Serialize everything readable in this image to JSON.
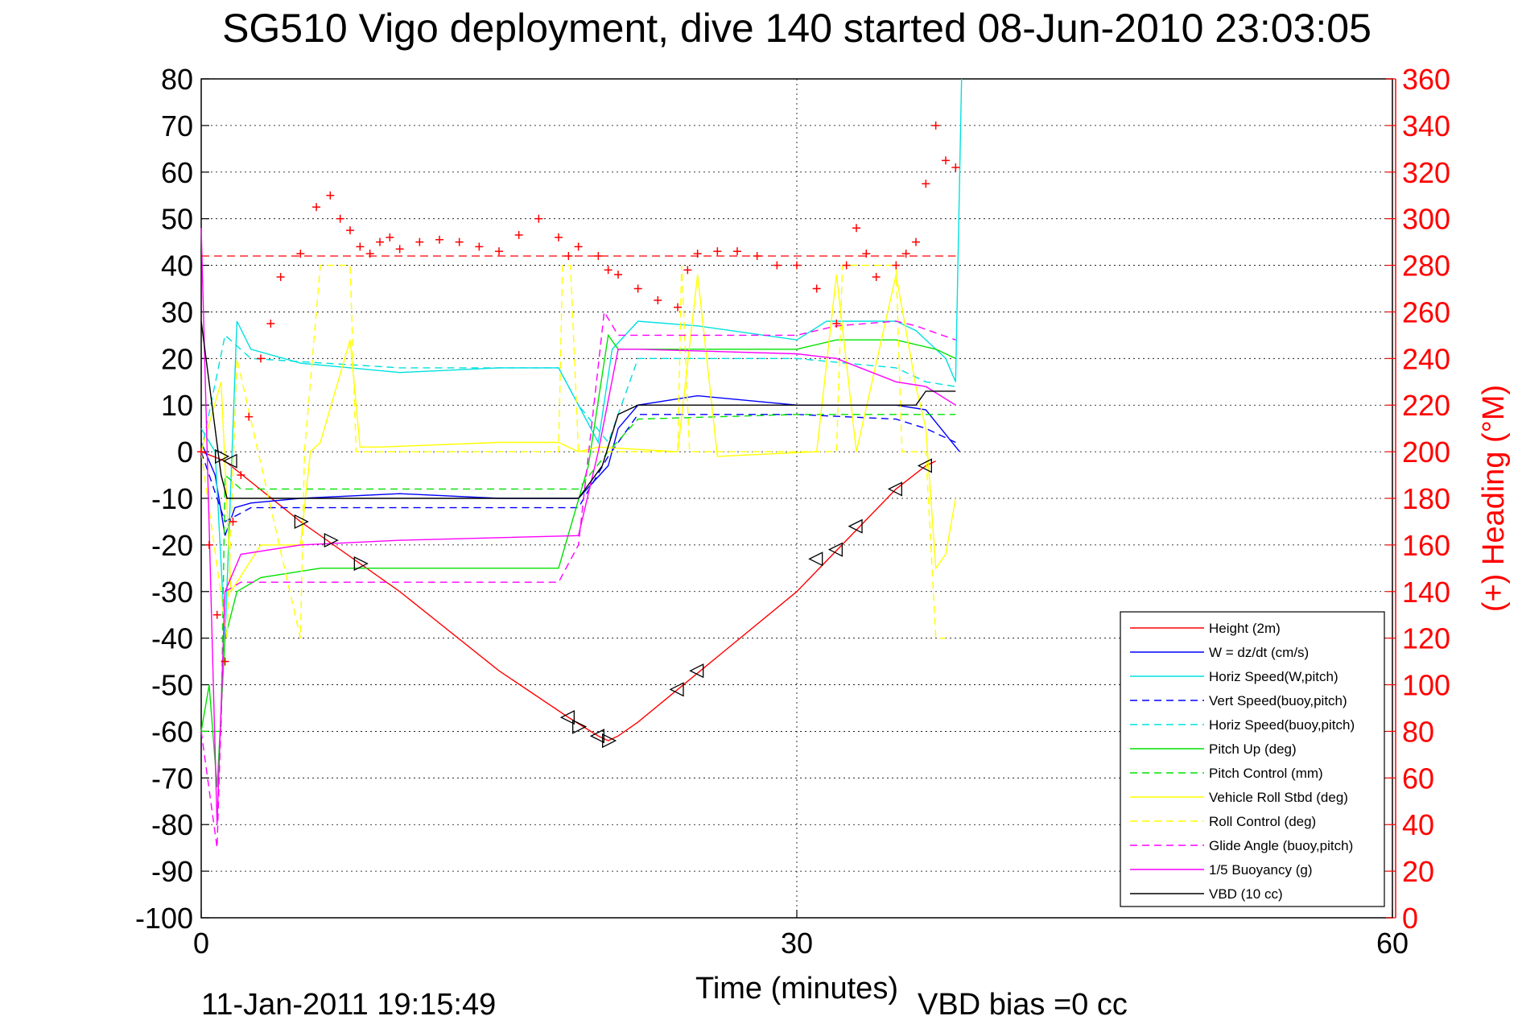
{
  "chart_data": {
    "type": "line",
    "title": "SG510 Vigo deployment, dive 140 started 08-Jun-2010 23:03:05",
    "xlabel": "Time (minutes)",
    "ylabel": "",
    "y2label": "(+) Heading (°M)",
    "xlim": [
      0,
      60
    ],
    "ylim": [
      -100,
      80
    ],
    "y2lim": [
      0,
      360
    ],
    "xticks": [
      "0",
      "30",
      "60"
    ],
    "yticks": [
      "80",
      "70",
      "60",
      "50",
      "40",
      "30",
      "20",
      "10",
      "0",
      "-10",
      "-20",
      "-30",
      "-40",
      "-50",
      "-60",
      "-70",
      "-80",
      "-90",
      "-100"
    ],
    "y2ticks": [
      "360",
      "340",
      "320",
      "300",
      "280",
      "260",
      "240",
      "220",
      "200",
      "180",
      "160",
      "140",
      "120",
      "100",
      "80",
      "60",
      "40",
      "20",
      "0"
    ],
    "grid": true,
    "legend_position": "bottom-right",
    "footer_timestamp": "11-Jan-2011 19:15:49",
    "vbd_bias": "VBD bias =0 cc",
    "series": [
      {
        "name": "Height (2m)",
        "color": "#ff0000",
        "style": "solid",
        "x": [
          0,
          1.2,
          5,
          10,
          15,
          18.5,
          20,
          20.5,
          21,
          22,
          30,
          35,
          36.5,
          37
        ],
        "y": [
          0,
          -2,
          -15,
          -30,
          -47,
          -57,
          -61,
          -62,
          -61,
          -58,
          -30,
          -8,
          -3,
          -2
        ]
      },
      {
        "name": "W = dz/dt (cm/s)",
        "color": "#0000ff",
        "style": "solid",
        "x": [
          0,
          0.7,
          1.2,
          1.7,
          2.5,
          5,
          10,
          15,
          19,
          20.5,
          21,
          22,
          25,
          30,
          35,
          36.5,
          38.2
        ],
        "y": [
          2,
          -5,
          -18,
          -12,
          -11,
          -10,
          -9,
          -10,
          -10,
          -3,
          5,
          10,
          12,
          10,
          10,
          9,
          0
        ]
      },
      {
        "name": "Horiz Speed(W,pitch)",
        "color": "#00e0e0",
        "style": "solid",
        "x": [
          0,
          0.7,
          1.2,
          1.8,
          2.5,
          5,
          10,
          15,
          18,
          19,
          20,
          20.7,
          22,
          25,
          30,
          31.5,
          35,
          36,
          37.5,
          38,
          38.3
        ],
        "y": [
          5,
          0,
          -40,
          28,
          22,
          19,
          17,
          18,
          18,
          10,
          2,
          22,
          28,
          27,
          24,
          28,
          28,
          26,
          20,
          15,
          80
        ]
      },
      {
        "name": "Vert Speed(buoy,pitch)",
        "color": "#0000ff",
        "style": "dashed",
        "x": [
          0,
          1.2,
          2.5,
          10,
          19,
          20.5,
          22,
          30,
          35,
          36.5,
          38
        ],
        "y": [
          0,
          -15,
          -12,
          -12,
          -12,
          -1,
          8,
          8,
          7,
          5,
          2
        ]
      },
      {
        "name": "Horiz Speed(buoy,pitch)",
        "color": "#00e0e0",
        "style": "dashed",
        "x": [
          0,
          1.2,
          2.5,
          10,
          18,
          19,
          20.5,
          22,
          30,
          35,
          36.5,
          38
        ],
        "y": [
          0,
          25,
          20,
          18,
          18,
          10,
          2,
          20,
          20,
          18,
          15,
          14
        ]
      },
      {
        "name": "Pitch Up (deg)",
        "color": "#00e000",
        "style": "solid",
        "x": [
          0,
          0.4,
          0.8,
          1.2,
          1.8,
          3,
          6,
          10,
          18,
          19.5,
          20.5,
          21,
          25,
          30,
          32,
          35,
          37,
          38
        ],
        "y": [
          -60,
          -50,
          -72,
          -40,
          -30,
          -27,
          -25,
          -25,
          -25,
          -3,
          25,
          22,
          22,
          22,
          24,
          24,
          22,
          20
        ]
      },
      {
        "name": "Pitch Control (mm)",
        "color": "#00e000",
        "style": "dashed",
        "x": [
          0,
          1,
          1.2,
          2,
          5,
          10,
          19,
          20.5,
          22,
          30,
          35,
          38
        ],
        "y": [
          -60,
          -60,
          -5,
          -8,
          -8,
          -8,
          -8,
          0,
          7,
          8,
          8,
          8
        ]
      },
      {
        "name": "Vehicle Roll Stbd (deg)",
        "color": "#ffff00",
        "style": "solid",
        "x": [
          0,
          1,
          1.5,
          3,
          5,
          5.5,
          6,
          7.5,
          8,
          9,
          15,
          18,
          19,
          20,
          24,
          25,
          26,
          31,
          32,
          33,
          35,
          36,
          36.5,
          37,
          37.5,
          38
        ],
        "y": [
          0,
          15,
          -30,
          -20,
          -20,
          0,
          2,
          24,
          1,
          1,
          2,
          2,
          0,
          1,
          0,
          38,
          -1,
          0,
          38,
          0,
          38,
          14,
          5,
          -25,
          -22,
          -10
        ]
      },
      {
        "name": "Roll Control (deg)",
        "color": "#ffff00",
        "style": "dashed",
        "x": [
          0,
          1.3,
          1.8,
          5,
          5.2,
          6,
          7.5,
          7.8,
          18,
          18.2,
          18.6,
          19,
          24,
          24.2,
          24.6,
          32,
          32.3,
          35,
          35.3,
          36.5,
          37,
          37.5
        ],
        "y": [
          0,
          -40,
          20,
          -40,
          0,
          40,
          40,
          0,
          0,
          40,
          40,
          0,
          0,
          40,
          0,
          0,
          40,
          40,
          0,
          0,
          -40,
          -40
        ]
      },
      {
        "name": "Glide Angle (buoy,pitch)",
        "color": "#ff00ff",
        "style": "dashed",
        "x": [
          0,
          0.8,
          1.2,
          2,
          5,
          10,
          18,
          19,
          20.3,
          21,
          22,
          30,
          32,
          35,
          36,
          38
        ],
        "y": [
          -60,
          -85,
          -30,
          -28,
          -28,
          -28,
          -28,
          -20,
          30,
          25,
          25,
          25,
          27,
          28,
          27,
          24
        ]
      },
      {
        "name": "1/5 Buoyancy (g)",
        "color": "#ff00ff",
        "style": "solid",
        "x": [
          0,
          0.8,
          1.2,
          2,
          5,
          10,
          19,
          20,
          21,
          22,
          30,
          32,
          35,
          36.5,
          38
        ],
        "y": [
          48,
          -80,
          -30,
          -22,
          -20,
          -19,
          -18,
          0,
          22,
          22,
          21,
          20,
          15,
          14,
          10
        ]
      },
      {
        "name": "VBD (10 cc)",
        "color": "#000000",
        "style": "solid",
        "x": [
          0,
          1,
          1.3,
          2,
          10,
          19,
          20.2,
          21,
          22,
          30,
          36,
          36.5,
          38
        ],
        "y": [
          28,
          -5,
          -10,
          -10,
          -10,
          -10,
          -3,
          8,
          10,
          10,
          10,
          13,
          13
        ]
      }
    ],
    "heading_series": {
      "name": "(+) Heading",
      "color": "#ff0000",
      "marker": "+",
      "target_heading": 284,
      "x": [
        0,
        0.4,
        0.8,
        1.2,
        1.6,
        2.0,
        2.4,
        3.0,
        3.5,
        4.0,
        5.0,
        5.8,
        6.5,
        7.0,
        7.5,
        8.0,
        8.5,
        9.0,
        9.5,
        10,
        11,
        12,
        13,
        14,
        15,
        16,
        17,
        18,
        18.5,
        19,
        20,
        20.5,
        21,
        22,
        23,
        24,
        24.5,
        25,
        26,
        27,
        28,
        29,
        30,
        31,
        32,
        32.5,
        33,
        33.5,
        34,
        35,
        35.5,
        36,
        36.5,
        37,
        37.5,
        38
      ],
      "y": [
        200,
        160,
        130,
        110,
        170,
        190,
        215,
        240,
        255,
        275,
        285,
        305,
        310,
        300,
        295,
        288,
        285,
        290,
        292,
        287,
        290,
        291,
        290,
        288,
        286,
        293,
        300,
        292,
        284,
        288,
        284,
        278,
        276,
        270,
        265,
        262,
        278,
        285,
        286,
        286,
        284,
        280,
        280,
        270,
        255,
        280,
        296,
        285,
        275,
        280,
        285,
        290,
        315,
        340,
        325,
        322
      ]
    },
    "markers": {
      "right_triangle": {
        "x": [
          1,
          5,
          6.5,
          8,
          19,
          20.5
        ],
        "y": [
          -1,
          -15,
          -19,
          -24,
          -59,
          -62
        ]
      },
      "left_triangle": {
        "x": [
          1.5,
          18.5,
          20,
          24,
          25,
          31,
          32,
          33,
          35,
          36.5
        ],
        "y": [
          -2,
          -57,
          -61,
          -51,
          -47,
          -23,
          -21,
          -16,
          -8,
          -3
        ]
      }
    }
  }
}
